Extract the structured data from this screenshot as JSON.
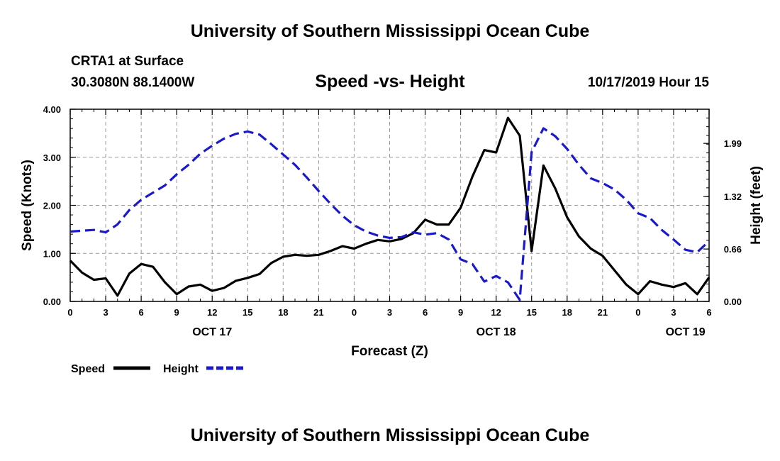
{
  "header": {
    "top_title": "University of Southern Mississippi Ocean Cube",
    "station": "CRTA1 at Surface",
    "location": "30.3080N 88.1400W",
    "plot_title": "Speed -vs- Height",
    "datetime": "10/17/2019 Hour 15",
    "bottom_title": "University of Southern Mississippi Ocean Cube"
  },
  "colors": {
    "speed": "#000000",
    "height": "#1a1acc",
    "grid": "#999999"
  },
  "chart_data": {
    "type": "line",
    "title": "Speed -vs- Height",
    "xlabel": "Forecast (Z)",
    "ylabel": "Speed (Knots)",
    "y2label": "Height (feet)",
    "xlim": [
      0,
      54
    ],
    "ylim": [
      0,
      4
    ],
    "y2lim": [
      0,
      2.42
    ],
    "grid": true,
    "x_ticks": [
      0,
      3,
      6,
      9,
      12,
      15,
      18,
      21,
      24,
      27,
      30,
      33,
      36,
      39,
      42,
      45,
      48,
      51,
      54
    ],
    "x_tick_labels": [
      "0",
      "3",
      "6",
      "9",
      "12",
      "15",
      "18",
      "21",
      "0",
      "3",
      "6",
      "9",
      "12",
      "15",
      "18",
      "21",
      "0",
      "3",
      "6"
    ],
    "date_labels": [
      {
        "x": 12,
        "text": "OCT 17"
      },
      {
        "x": 36,
        "text": "OCT 18"
      },
      {
        "x": 52,
        "text": "OCT 19"
      }
    ],
    "y_ticks": [
      0,
      1,
      2,
      3,
      4
    ],
    "y_tick_labels": [
      "0.00",
      "1.00",
      "2.00",
      "3.00",
      "4.00"
    ],
    "y2_ticks": [
      0,
      0.66,
      1.32,
      1.99
    ],
    "y2_tick_labels": [
      "0.00",
      "0.66",
      "1.32",
      "1.99"
    ],
    "legend": [
      {
        "name": "Speed",
        "style": "solid"
      },
      {
        "name": "Height",
        "style": "dashed"
      }
    ],
    "series": [
      {
        "name": "Speed",
        "axis": "left",
        "style": "solid",
        "x": [
          0,
          1,
          2,
          3,
          4,
          5,
          6,
          7,
          8,
          9,
          10,
          11,
          12,
          13,
          14,
          15,
          16,
          17,
          18,
          19,
          20,
          21,
          22,
          23,
          24,
          25,
          26,
          27,
          28,
          29,
          30,
          31,
          32,
          33,
          34,
          35,
          36,
          37,
          38,
          39,
          40,
          41,
          42,
          43,
          44,
          45,
          46,
          47,
          48,
          49,
          50,
          51,
          52,
          53,
          54
        ],
        "values": [
          0.85,
          0.6,
          0.45,
          0.48,
          0.12,
          0.58,
          0.78,
          0.72,
          0.4,
          0.15,
          0.31,
          0.35,
          0.22,
          0.28,
          0.43,
          0.49,
          0.57,
          0.8,
          0.93,
          0.97,
          0.95,
          0.97,
          1.05,
          1.15,
          1.1,
          1.2,
          1.28,
          1.25,
          1.3,
          1.42,
          1.7,
          1.6,
          1.6,
          1.95,
          2.6,
          3.15,
          3.1,
          3.82,
          3.45,
          1.05,
          2.83,
          2.35,
          1.75,
          1.35,
          1.1,
          0.95,
          0.65,
          0.35,
          0.15,
          0.42,
          0.35,
          0.3,
          0.38,
          0.15,
          0.5
        ]
      },
      {
        "name": "Height",
        "axis": "right",
        "style": "dashed",
        "x": [
          0,
          1,
          2,
          3,
          4,
          5,
          6,
          7,
          8,
          9,
          10,
          11,
          12,
          13,
          14,
          15,
          16,
          17,
          18,
          19,
          20,
          21,
          22,
          23,
          24,
          25,
          26,
          27,
          28,
          29,
          30,
          31,
          32,
          33,
          34,
          35,
          36,
          37,
          38,
          39,
          40,
          41,
          42,
          43,
          44,
          45,
          46,
          47,
          48,
          49,
          50,
          51,
          52,
          53,
          54
        ],
        "values": [
          0.88,
          0.89,
          0.9,
          0.87,
          0.97,
          1.15,
          1.28,
          1.37,
          1.46,
          1.6,
          1.72,
          1.86,
          1.96,
          2.05,
          2.11,
          2.14,
          2.1,
          1.98,
          1.85,
          1.72,
          1.56,
          1.39,
          1.23,
          1.08,
          0.96,
          0.88,
          0.83,
          0.8,
          0.81,
          0.87,
          0.84,
          0.86,
          0.78,
          0.53,
          0.47,
          0.25,
          0.32,
          0.24,
          0.02,
          1.88,
          2.18,
          2.08,
          1.92,
          1.72,
          1.55,
          1.49,
          1.41,
          1.28,
          1.11,
          1.05,
          0.9,
          0.78,
          0.65,
          0.62,
          0.76
        ]
      }
    ]
  }
}
